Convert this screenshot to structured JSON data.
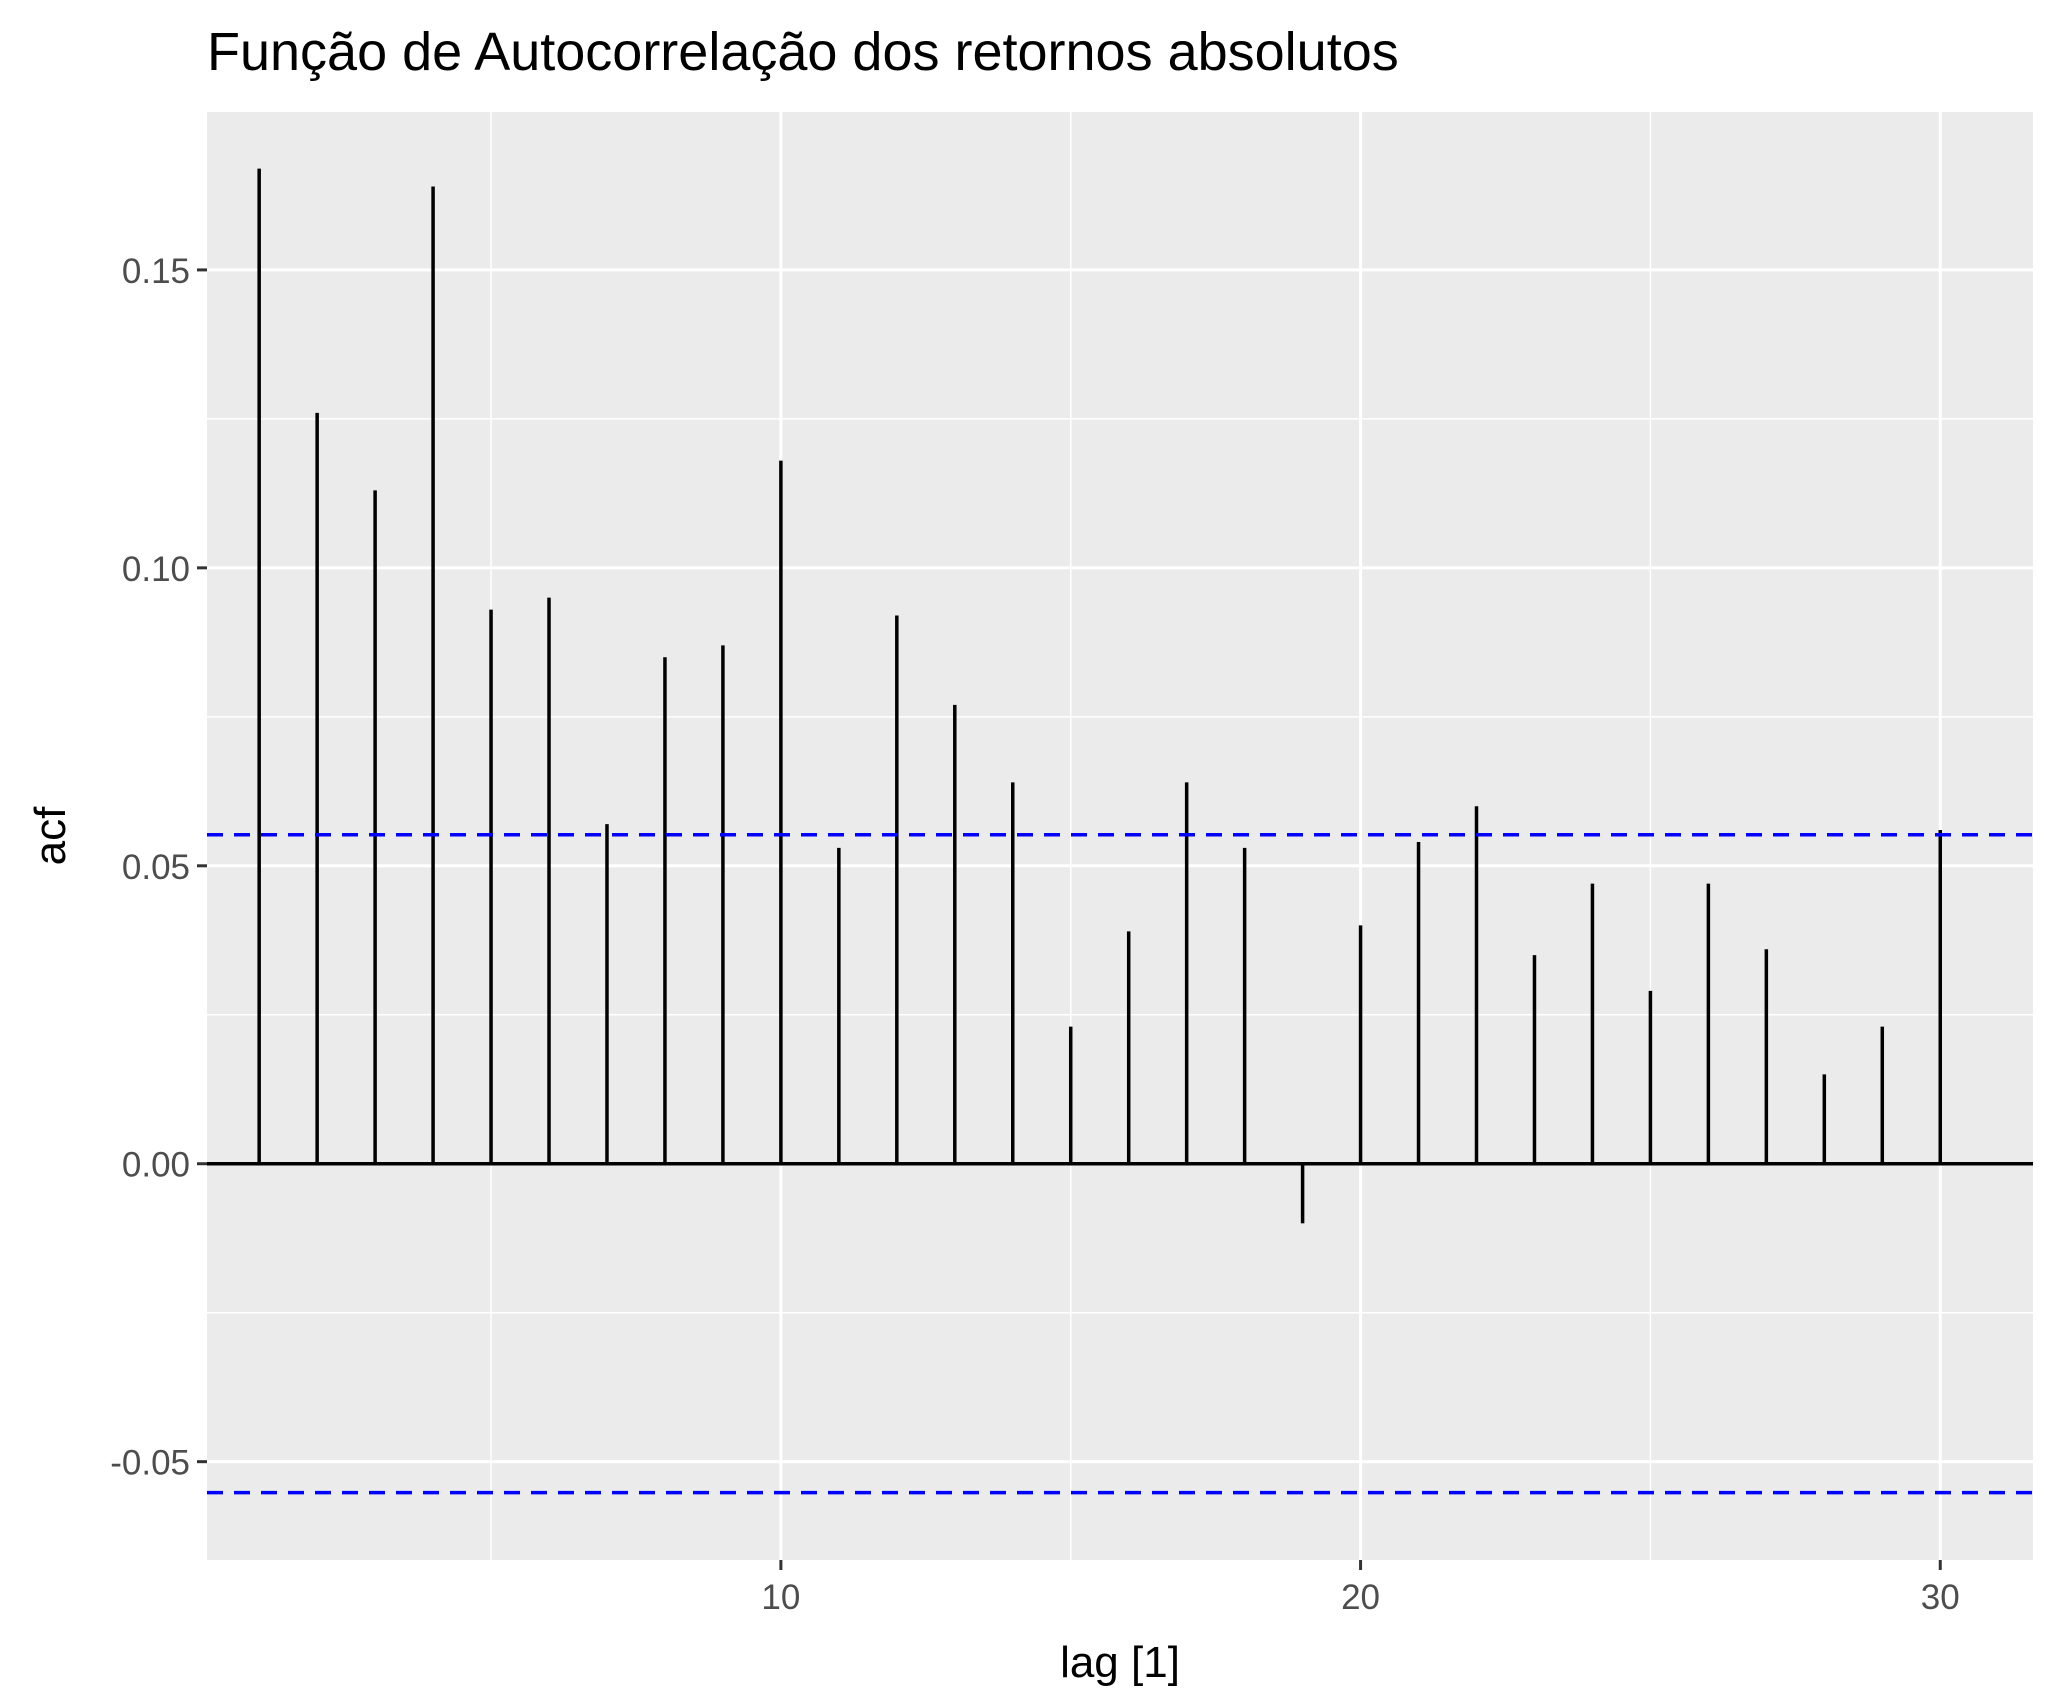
{
  "chart_data": {
    "type": "bar",
    "title": "Função de Autocorrelação dos retornos absolutos",
    "xlabel": "lag [1]",
    "ylabel": "acf",
    "x": [
      1,
      2,
      3,
      4,
      5,
      6,
      7,
      8,
      9,
      10,
      11,
      12,
      13,
      14,
      15,
      16,
      17,
      18,
      19,
      20,
      21,
      22,
      23,
      24,
      25,
      26,
      27,
      28,
      29,
      30
    ],
    "values": [
      0.167,
      0.126,
      0.113,
      0.164,
      0.093,
      0.095,
      0.057,
      0.085,
      0.087,
      0.118,
      0.053,
      0.092,
      0.077,
      0.064,
      0.023,
      0.039,
      0.064,
      0.053,
      -0.01,
      0.04,
      0.054,
      0.06,
      0.035,
      0.047,
      0.029,
      0.047,
      0.036,
      0.015,
      0.023,
      0.056
    ],
    "xlim": [
      0.1,
      31.6
    ],
    "ylim": [
      -0.0665,
      0.1765
    ],
    "x_ticks": [
      10,
      20,
      30
    ],
    "x_tick_labels": [
      "10",
      "20",
      "30"
    ],
    "y_ticks": [
      -0.05,
      0,
      0.05,
      0.1,
      0.15
    ],
    "y_tick_labels": [
      "-0.05",
      "0.00",
      "0.05",
      "0.10",
      "0.15"
    ],
    "x_minor_gridlines": [
      5,
      15,
      25
    ],
    "y_minor_gridlines": [
      -0.025,
      0.025,
      0.075,
      0.125
    ],
    "confidence_bounds": [
      0.0552,
      -0.0552
    ],
    "grid": true,
    "colors": {
      "panel": "#ebebeb",
      "grid": "#ffffff",
      "bars": "#000000",
      "bounds": "#0000ff",
      "tick_text": "#4d4d4d",
      "text": "#000000"
    }
  }
}
